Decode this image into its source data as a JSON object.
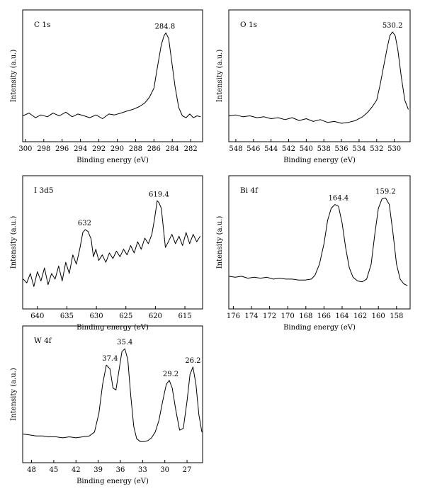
{
  "chart_data": [
    {
      "type": "line",
      "title": "C 1s",
      "xlabel": "Binding energy (eV)",
      "ylabel": "Intensity (a.u.)",
      "xlim": [
        300.3,
        280.7
      ],
      "xticks": [
        300,
        298,
        296,
        294,
        292,
        290,
        288,
        286,
        284,
        282
      ],
      "x_reversed": true,
      "ylim": [
        0,
        100
      ],
      "peak_labels": [
        {
          "x": 284.8,
          "text": "284.8"
        }
      ],
      "series": [
        {
          "x": [
            300.3,
            299.6,
            298.9,
            298.3,
            297.6,
            297.0,
            296.3,
            295.6,
            294.9,
            294.3,
            293.6,
            293.0,
            292.3,
            291.6,
            290.9,
            290.3,
            289.6,
            289.0,
            288.3,
            287.6,
            287.0,
            286.5,
            286.0,
            285.6,
            285.2,
            284.9,
            284.7,
            284.4,
            284.1,
            283.7,
            283.3,
            282.9,
            282.5,
            282.1,
            281.7,
            281.3,
            280.9
          ],
          "y": [
            8,
            11,
            6,
            9,
            7,
            11,
            8,
            12,
            7,
            10,
            8,
            6,
            9,
            5,
            10,
            9,
            11,
            13,
            15,
            18,
            22,
            28,
            38,
            62,
            85,
            95,
            98,
            92,
            70,
            40,
            17,
            8,
            6,
            10,
            6,
            8,
            7
          ]
        }
      ]
    },
    {
      "type": "line",
      "title": "O 1s",
      "xlabel": "Binding energy (eV)",
      "ylabel": "Intensity (a.u.)",
      "xlim": [
        548.8,
        528.2
      ],
      "xticks": [
        548,
        546,
        544,
        542,
        540,
        538,
        536,
        534,
        532,
        530
      ],
      "x_reversed": true,
      "ylim": [
        0,
        100
      ],
      "peak_labels": [
        {
          "x": 530.2,
          "text": "530.2"
        }
      ],
      "series": [
        {
          "x": [
            548.8,
            548.0,
            547.2,
            546.4,
            545.6,
            544.8,
            544.0,
            543.2,
            542.4,
            541.6,
            540.8,
            540.0,
            539.2,
            538.4,
            537.6,
            536.8,
            536.0,
            535.2,
            534.4,
            533.6,
            533.0,
            532.5,
            532.0,
            531.6,
            531.2,
            530.8,
            530.5,
            530.2,
            529.9,
            529.6,
            529.2,
            528.8,
            528.4
          ],
          "y": [
            8,
            9,
            7,
            8,
            6,
            7,
            5,
            6,
            4,
            6,
            3,
            5,
            2,
            4,
            1,
            2,
            0,
            1,
            3,
            7,
            12,
            18,
            25,
            42,
            62,
            82,
            95,
            99,
            95,
            80,
            50,
            25,
            15
          ]
        }
      ]
    },
    {
      "type": "line",
      "title": "I 3d5",
      "xlabel": "Binding energy (eV)",
      "ylabel": "Intensity (a.u.)",
      "xlim": [
        642.5,
        612
      ],
      "xticks": [
        640,
        635,
        630,
        625,
        620,
        615
      ],
      "x_reversed": true,
      "ylim": [
        0,
        100
      ],
      "peak_labels": [
        {
          "x": 632,
          "text": "632"
        },
        {
          "x": 619.4,
          "text": "619.4"
        }
      ],
      "series": [
        {
          "x": [
            642.4,
            641.8,
            641.2,
            640.6,
            640.0,
            639.4,
            638.8,
            638.2,
            637.6,
            637.0,
            636.4,
            635.8,
            635.2,
            634.6,
            634.0,
            633.4,
            632.8,
            632.3,
            631.9,
            631.4,
            630.9,
            630.5,
            630.1,
            629.6,
            629.0,
            628.4,
            627.8,
            627.2,
            626.6,
            626.0,
            625.4,
            624.8,
            624.2,
            623.6,
            623.0,
            622.4,
            621.8,
            621.2,
            620.6,
            620.1,
            619.7,
            619.4,
            619.0,
            618.7,
            618.3,
            617.8,
            617.2,
            616.6,
            616.0,
            615.4,
            614.8,
            614.2,
            613.6,
            613.0,
            612.4
          ],
          "y": [
            12,
            8,
            18,
            4,
            20,
            10,
            24,
            6,
            18,
            12,
            26,
            10,
            30,
            18,
            38,
            28,
            45,
            62,
            65,
            63,
            55,
            36,
            44,
            32,
            38,
            30,
            40,
            34,
            42,
            36,
            44,
            38,
            48,
            40,
            52,
            44,
            56,
            50,
            60,
            78,
            96,
            94,
            88,
            70,
            46,
            52,
            60,
            50,
            58,
            48,
            62,
            50,
            60,
            52,
            58
          ]
        }
      ]
    },
    {
      "type": "line",
      "title": "Bi 4f",
      "xlabel": "Binding energy (eV)",
      "ylabel": "Intensity (a.u.)",
      "xlim": [
        176.5,
        156.5
      ],
      "xticks": [
        176,
        174,
        172,
        170,
        168,
        166,
        164,
        162,
        160,
        158
      ],
      "x_reversed": true,
      "ylim": [
        0,
        100
      ],
      "peak_labels": [
        {
          "x": 164.4,
          "text": "164.4"
        },
        {
          "x": 159.2,
          "text": "159.2"
        }
      ],
      "series": [
        {
          "x": [
            176.5,
            175.8,
            175.1,
            174.4,
            173.7,
            173.0,
            172.3,
            171.6,
            170.9,
            170.2,
            169.5,
            168.8,
            168.1,
            167.4,
            167.0,
            166.5,
            166.0,
            165.6,
            165.2,
            164.8,
            164.4,
            164.0,
            163.6,
            163.2,
            162.8,
            162.3,
            161.8,
            161.3,
            160.8,
            160.4,
            160.0,
            159.6,
            159.2,
            158.8,
            158.4,
            158.0,
            157.6,
            157.2,
            156.8
          ],
          "y": [
            15,
            14,
            15,
            13,
            14,
            13,
            14,
            12,
            13,
            12,
            12,
            11,
            11,
            12,
            16,
            28,
            50,
            75,
            88,
            92,
            90,
            72,
            45,
            24,
            14,
            10,
            9,
            12,
            28,
            60,
            88,
            98,
            99,
            92,
            62,
            28,
            12,
            7,
            5
          ]
        }
      ]
    },
    {
      "type": "line",
      "title": "W 4f",
      "xlabel": "Binding energy (eV)",
      "ylabel": "Intensity (a.u.)",
      "xlim": [
        49.2,
        24.9
      ],
      "xticks": [
        48,
        45,
        42,
        39,
        36,
        33,
        30,
        27
      ],
      "x_reversed": true,
      "ylim": [
        0,
        100
      ],
      "peak_labels": [
        {
          "x": 37.4,
          "text": "37.4"
        },
        {
          "x": 35.4,
          "text": "35.4"
        },
        {
          "x": 29.2,
          "text": "29.2"
        },
        {
          "x": 26.2,
          "text": "26.2"
        }
      ],
      "series": [
        {
          "x": [
            49.2,
            48.3,
            47.4,
            46.5,
            45.6,
            44.7,
            43.8,
            42.9,
            42.0,
            41.1,
            40.2,
            39.5,
            38.9,
            38.4,
            37.9,
            37.4,
            37.0,
            36.6,
            36.2,
            35.8,
            35.4,
            35.0,
            34.6,
            34.2,
            33.8,
            33.3,
            32.8,
            32.3,
            31.8,
            31.3,
            30.8,
            30.3,
            29.8,
            29.4,
            29.0,
            28.5,
            28.0,
            27.5,
            27.0,
            26.6,
            26.2,
            25.8,
            25.4,
            25.0
          ],
          "y": [
            10,
            9,
            8,
            8,
            7,
            7,
            6,
            7,
            6,
            7,
            8,
            12,
            32,
            62,
            82,
            78,
            58,
            56,
            76,
            96,
            99,
            88,
            50,
            18,
            5,
            2,
            2,
            3,
            6,
            12,
            24,
            44,
            62,
            66,
            58,
            34,
            14,
            16,
            44,
            72,
            80,
            62,
            30,
            12
          ]
        }
      ]
    }
  ]
}
